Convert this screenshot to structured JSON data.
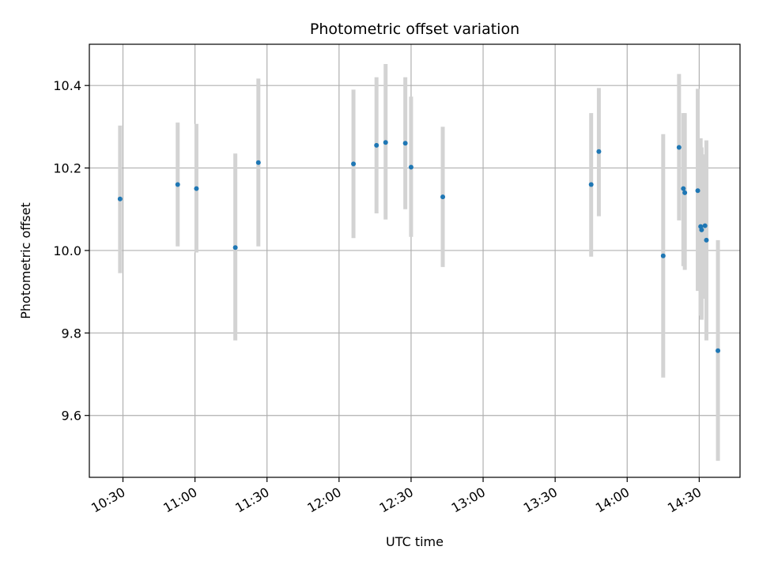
{
  "chart_data": {
    "type": "scatter",
    "title": "Photometric offset variation",
    "xlabel": "UTC time",
    "ylabel": "Photometric offset",
    "grid": true,
    "x_ticks": [
      "10:30",
      "11:00",
      "11:30",
      "12:00",
      "12:30",
      "13:00",
      "13:30",
      "14:00",
      "14:30"
    ],
    "y_ticks": [
      "9.6",
      "9.8",
      "10.0",
      "10.2",
      "10.4"
    ],
    "xlim": [
      "10:16",
      "14:47"
    ],
    "ylim": [
      9.45,
      10.5
    ],
    "colors": {
      "point": "#1f77b4",
      "errorbar": "#d3d3d3",
      "grid": "#b0b0b0"
    },
    "points": [
      {
        "x": "10:28:48",
        "y": 10.125,
        "yerr_low": 9.945,
        "yerr_high": 10.303
      },
      {
        "x": "10:52:48",
        "y": 10.16,
        "yerr_low": 10.01,
        "yerr_high": 10.31
      },
      {
        "x": "11:00:36",
        "y": 10.15,
        "yerr_low": 9.995,
        "yerr_high": 10.307
      },
      {
        "x": "11:16:48",
        "y": 10.007,
        "yerr_low": 9.782,
        "yerr_high": 10.235
      },
      {
        "x": "11:26:24",
        "y": 10.213,
        "yerr_low": 10.01,
        "yerr_high": 10.417
      },
      {
        "x": "12:06:00",
        "y": 10.21,
        "yerr_low": 10.03,
        "yerr_high": 10.39
      },
      {
        "x": "12:15:36",
        "y": 10.255,
        "yerr_low": 10.09,
        "yerr_high": 10.42
      },
      {
        "x": "12:19:24",
        "y": 10.262,
        "yerr_low": 10.075,
        "yerr_high": 10.452
      },
      {
        "x": "12:27:36",
        "y": 10.26,
        "yerr_low": 10.1,
        "yerr_high": 10.42
      },
      {
        "x": "12:30:00",
        "y": 10.202,
        "yerr_low": 10.033,
        "yerr_high": 10.373
      },
      {
        "x": "12:43:12",
        "y": 10.13,
        "yerr_low": 9.96,
        "yerr_high": 10.3
      },
      {
        "x": "13:45:00",
        "y": 10.16,
        "yerr_low": 9.985,
        "yerr_high": 10.333
      },
      {
        "x": "13:48:12",
        "y": 10.24,
        "yerr_low": 10.083,
        "yerr_high": 10.394
      },
      {
        "x": "14:15:00",
        "y": 9.987,
        "yerr_low": 9.692,
        "yerr_high": 10.282
      },
      {
        "x": "14:21:36",
        "y": 10.25,
        "yerr_low": 10.073,
        "yerr_high": 10.428
      },
      {
        "x": "14:23:24",
        "y": 10.15,
        "yerr_low": 9.962,
        "yerr_high": 10.333
      },
      {
        "x": "14:24:00",
        "y": 10.14,
        "yerr_low": 9.953,
        "yerr_high": 10.333
      },
      {
        "x": "14:29:24",
        "y": 10.145,
        "yerr_low": 9.902,
        "yerr_high": 10.392
      },
      {
        "x": "14:30:36",
        "y": 10.058,
        "yerr_low": 9.842,
        "yerr_high": 10.272
      },
      {
        "x": "14:31:00",
        "y": 10.05,
        "yerr_low": 9.832,
        "yerr_high": 10.25
      },
      {
        "x": "14:32:24",
        "y": 10.06,
        "yerr_low": 9.883,
        "yerr_high": 10.233
      },
      {
        "x": "14:33:00",
        "y": 10.025,
        "yerr_low": 9.782,
        "yerr_high": 10.267
      },
      {
        "x": "14:37:48",
        "y": 9.757,
        "yerr_low": 9.49,
        "yerr_high": 10.025
      }
    ]
  }
}
